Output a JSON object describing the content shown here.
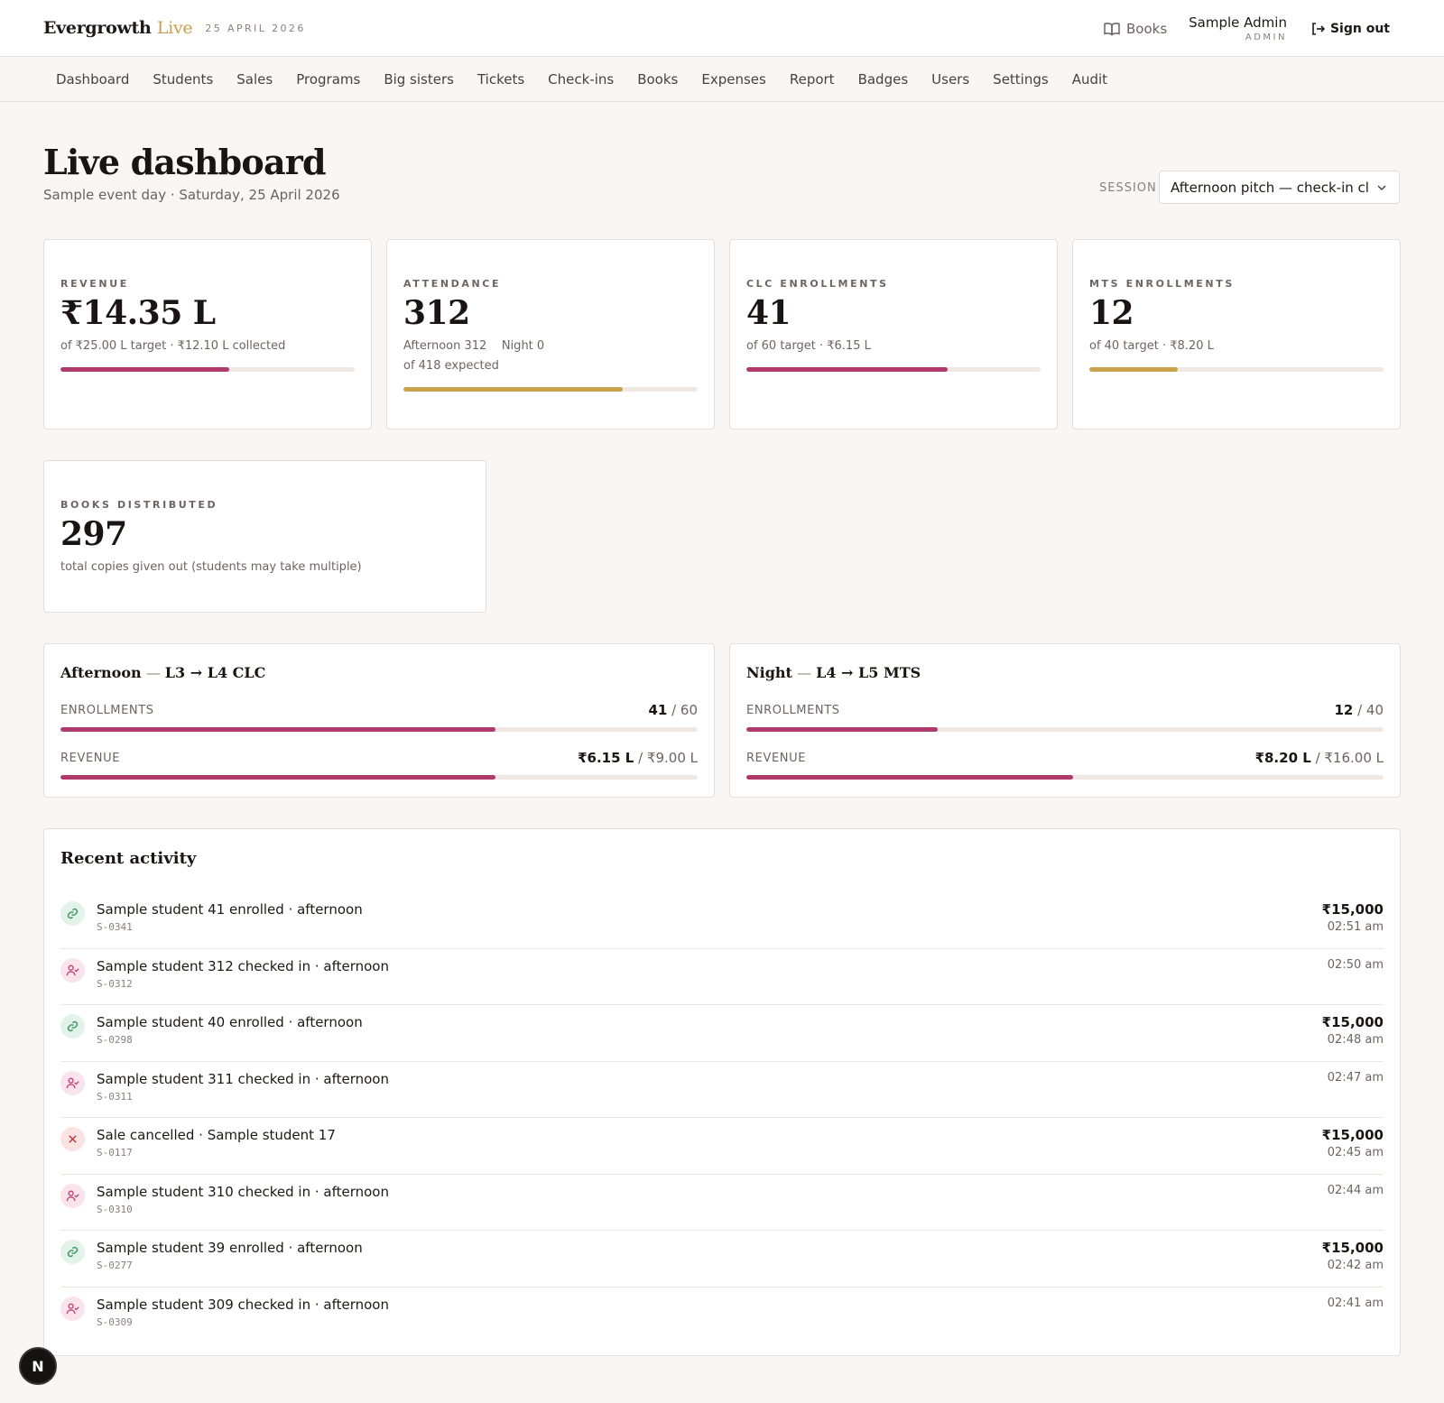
{
  "header": {
    "brand_name": "Evergrowth",
    "brand_accent": "Live",
    "date": "25 APRIL 2026",
    "books_link": "Books",
    "user_name": "Sample Admin",
    "user_role": "ADMIN",
    "sign_out": "Sign out"
  },
  "nav": {
    "items": [
      "Dashboard",
      "Students",
      "Sales",
      "Programs",
      "Big sisters",
      "Tickets",
      "Check-ins",
      "Books",
      "Expenses",
      "Report",
      "Badges",
      "Users",
      "Settings",
      "Audit"
    ]
  },
  "page": {
    "title": "Live dashboard",
    "subtitle": "Sample event day · Saturday, 25 April 2026",
    "session_label": "SESSION",
    "session_value": "Afternoon pitch — check-in clo"
  },
  "stats": {
    "revenue": {
      "label": "REVENUE",
      "value": "₹14.35 L",
      "sub": "of ₹25.00 L target · ₹12.10 L collected",
      "progress": 0.574
    },
    "attendance": {
      "label": "ATTENDANCE",
      "value": "312",
      "sub1": "Afternoon 312    Night 0",
      "sub2": "of 418 expected",
      "progress": 0.746
    },
    "clc": {
      "label": "CLC ENROLLMENTS",
      "value": "41",
      "sub": "of 60 target · ₹6.15 L",
      "progress": 0.683
    },
    "mts": {
      "label": "MTS ENROLLMENTS",
      "value": "12",
      "sub": "of 40 target · ₹8.20 L",
      "progress": 0.3
    },
    "books": {
      "label": "BOOKS DISTRIBUTED",
      "value": "297",
      "sub": "total copies given out (students may take multiple)"
    }
  },
  "programs": {
    "afternoon": {
      "title_main": "Afternoon",
      "title_sep": " — ",
      "title_rest": "L3 → L4 CLC",
      "enroll_label": "ENROLLMENTS",
      "enroll_value": "41",
      "enroll_total": " / 60",
      "enroll_progress": 0.683,
      "revenue_label": "REVENUE",
      "revenue_value": "₹6.15 L",
      "revenue_total": " / ₹9.00 L",
      "revenue_progress": 0.683
    },
    "night": {
      "title_main": "Night",
      "title_sep": " — ",
      "title_rest": "L4 → L5 MTS",
      "enroll_label": "ENROLLMENTS",
      "enroll_value": "12",
      "enroll_total": " / 40",
      "enroll_progress": 0.3,
      "revenue_label": "REVENUE",
      "revenue_value": "₹8.20 L",
      "revenue_total": " / ₹16.00 L",
      "revenue_progress": 0.5125
    }
  },
  "activity": {
    "title": "Recent activity",
    "items": [
      {
        "type": "enroll",
        "text": "Sample student 41 enrolled · afternoon",
        "code": "S-0341",
        "amount": "₹15,000",
        "time": "02:51 am"
      },
      {
        "type": "checkin",
        "text": "Sample student 312 checked in · afternoon",
        "code": "S-0312",
        "amount": "",
        "time": "02:50 am"
      },
      {
        "type": "enroll",
        "text": "Sample student 40 enrolled · afternoon",
        "code": "S-0298",
        "amount": "₹15,000",
        "time": "02:48 am"
      },
      {
        "type": "checkin",
        "text": "Sample student 311 checked in · afternoon",
        "code": "S-0311",
        "amount": "",
        "time": "02:47 am"
      },
      {
        "type": "cancel",
        "text": "Sale cancelled · Sample student 17",
        "code": "S-0117",
        "amount": "₹15,000",
        "time": "02:45 am"
      },
      {
        "type": "checkin",
        "text": "Sample student 310 checked in · afternoon",
        "code": "S-0310",
        "amount": "",
        "time": "02:44 am"
      },
      {
        "type": "enroll",
        "text": "Sample student 39 enrolled · afternoon",
        "code": "S-0277",
        "amount": "₹15,000",
        "time": "02:42 am"
      },
      {
        "type": "checkin",
        "text": "Sample student 309 checked in · afternoon",
        "code": "S-0309",
        "amount": "",
        "time": "02:41 am"
      }
    ]
  },
  "fab_label": "N",
  "colors": {
    "rose": "#b03a6c",
    "gold": "#c9a34c",
    "background": "#faf6f3"
  }
}
